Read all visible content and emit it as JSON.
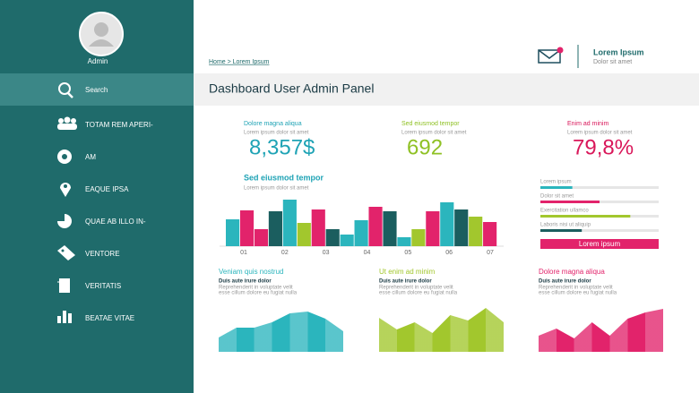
{
  "sidebar": {
    "user": "Admin",
    "search": "Search",
    "items": [
      "TOTAM REM APERI-",
      "AM",
      "EAQUE IPSA",
      "QUAE AB ILLO IN-",
      "VENTORE",
      "VERITATIS",
      "BEATAE VITAE"
    ]
  },
  "header": {
    "breadcrumb": "Home > Lorem Ipsum",
    "user_name": "Lorem Ipsum",
    "user_sub": "Dolor sit amet",
    "title": "Dashboard User Admin Panel"
  },
  "stats": [
    {
      "label": "Dolore magna aliqua",
      "sub": "Lorem ipsum dolor sit amet",
      "value": "8,357$",
      "color": "#1fa3b5"
    },
    {
      "label": "Sed eiusmod tempor",
      "sub": "Lorem ipsum dolor sit amet",
      "value": "692",
      "color": "#8fc124"
    },
    {
      "label": "Enim ad minim",
      "sub": "Lorem ipsum dolor sit amet",
      "value": "79,8%",
      "color": "#d9175a"
    }
  ],
  "chart_data": [
    {
      "type": "bar",
      "title": "Sed eiusmod tempor",
      "subtitle": "Lorem ipsum dolor sit amet",
      "xlabels": [
        "01",
        "02",
        "03",
        "04",
        "05",
        "06",
        "07"
      ],
      "values": [
        30,
        40,
        19,
        39,
        52,
        26,
        41,
        19,
        13,
        29,
        44,
        39,
        10,
        19,
        39,
        49,
        41,
        33,
        27
      ],
      "colors": [
        "#2bb5bd",
        "#e2236b",
        "#e2236b",
        "#1b5e5f",
        "#2bb5bd",
        "#a2c72d",
        "#e2236b",
        "#1b5e5f",
        "#2bb5bd",
        "#2bb5bd",
        "#e2236b",
        "#1b5e5f",
        "#2bb5bd",
        "#a2c72d",
        "#e2236b",
        "#2bb5bd",
        "#1b5e5f",
        "#a2c72d",
        "#e2236b"
      ],
      "ylim": [
        0,
        50
      ]
    },
    {
      "type": "progress",
      "categories": [
        "Lorem ipsum",
        "Dolor sit amet",
        "Exercitation ullamco",
        "Laboris nisi ut aliquip"
      ],
      "values": [
        27,
        50,
        76,
        35
      ],
      "colors": [
        "#2bb5bd",
        "#e2236b",
        "#a2c72d",
        "#1b5e5f"
      ],
      "xlim": [
        0,
        100
      ],
      "button": "Lorem ipsum"
    },
    {
      "type": "area",
      "title": "Veniam quis nostrud",
      "subtitle": "Duis aute irure dolor",
      "lines": [
        "Reprehenderit in voluptate velit",
        "esse cillum dolore eu fugiat nulla"
      ],
      "values": [
        16,
        27,
        27,
        33,
        43,
        45,
        37,
        23
      ],
      "color": "#2bb5bd",
      "ylim": [
        0,
        50
      ]
    },
    {
      "type": "area",
      "title": "Ut enim ad minim",
      "subtitle": "Duis aute irure dolor",
      "lines": [
        "Reprehenderit in voluptate velit",
        "esse cillum dolore eu fugiat nulla"
      ],
      "values": [
        38,
        25,
        33,
        21,
        41,
        35,
        49,
        33
      ],
      "color": "#a2c72d",
      "ylim": [
        0,
        50
      ]
    },
    {
      "type": "area",
      "title": "Dolore magna aliqua",
      "subtitle": "Duis aute irure dolor",
      "lines": [
        "Reprehenderit in voluptate velit",
        "esse cillum dolore eu fugiat nulla"
      ],
      "values": [
        18,
        26,
        15,
        33,
        18,
        37,
        44,
        48
      ],
      "color": "#e2236b",
      "ylim": [
        0,
        50
      ]
    }
  ]
}
